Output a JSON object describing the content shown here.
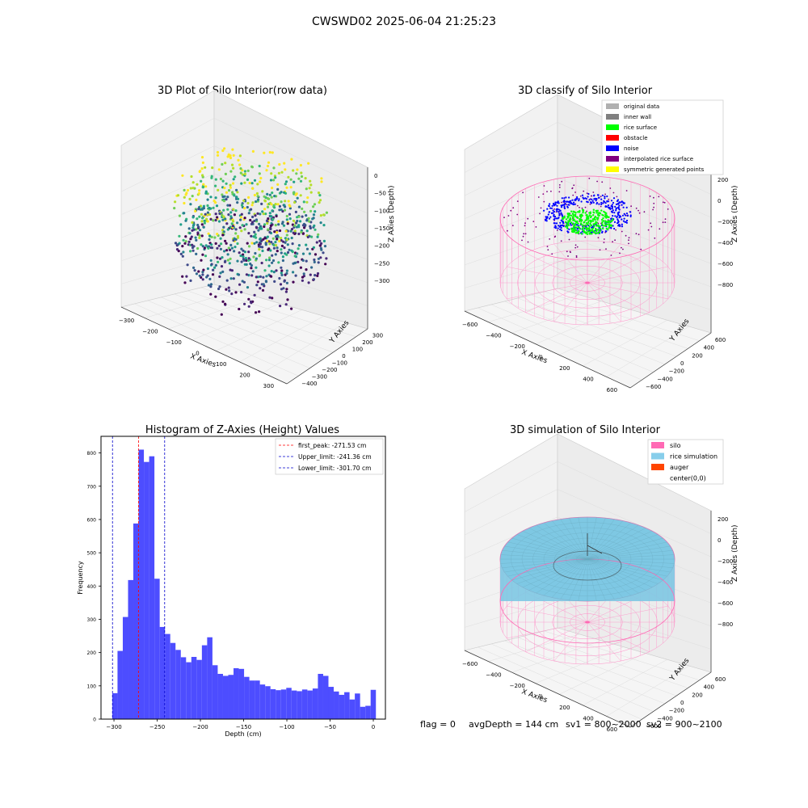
{
  "suptitle": "CWSWD02 2025-06-04 21:25:23",
  "status": {
    "flag": "flag = 0",
    "avg_depth": "avgDepth = 144 cm",
    "sv1": "sv1 = 800~2000",
    "sv2": "sv2 = 900~2100"
  },
  "chart_data": [
    {
      "type": "scatter",
      "title": "3D Plot of Silo Interior(row data)",
      "xlabel": "X Axies",
      "ylabel": "Y Axies",
      "zlabel": "Z Axies (Depth)",
      "xticks": [
        "−300",
        "−200",
        "−100",
        "0",
        "100",
        "200",
        "300"
      ],
      "yticks": [
        "300",
        "200",
        "100",
        "0",
        "−100",
        "−200",
        "−300",
        "−400"
      ],
      "zticks": [
        "0",
        "−50",
        "−100",
        "−150",
        "−200",
        "−250",
        "−300"
      ],
      "colormap": [
        "#fde725",
        "#b5de2b",
        "#6ece58",
        "#35b779",
        "#1f9e89",
        "#26828e",
        "#31688e",
        "#3e4989",
        "#482878",
        "#440154"
      ]
    },
    {
      "type": "scatter",
      "title": "3D classify of Silo Interior",
      "xlabel": "X Axies",
      "ylabel": "Y Axies",
      "zlabel": "Z Axies (Depth)",
      "xticks": [
        "−600",
        "−400",
        "−200",
        "0",
        "200",
        "400",
        "600"
      ],
      "yticks": [
        "600",
        "400",
        "200",
        "0",
        "−200",
        "−400",
        "−600"
      ],
      "zticks": [
        "200",
        "0",
        "−200",
        "−400",
        "−600",
        "−800"
      ],
      "legend": [
        {
          "label": "original data",
          "color": "#b0b0b0"
        },
        {
          "label": "inner wall",
          "color": "#808080"
        },
        {
          "label": "rice surface",
          "color": "#00ff00"
        },
        {
          "label": "obstacle",
          "color": "#ff0000"
        },
        {
          "label": "noise",
          "color": "#0000ff"
        },
        {
          "label": "interpolated rice surface",
          "color": "#800080"
        },
        {
          "label": "symmetric generated points",
          "color": "#ffff00"
        }
      ],
      "legend_position": "top-right"
    },
    {
      "type": "bar",
      "title": "Histogram of Z-Axies (Height) Values",
      "xlabel": "Depth (cm)",
      "ylabel": "Frequency",
      "xlim": [
        -315,
        14
      ],
      "ylim": [
        0,
        850
      ],
      "xticks": [
        -300,
        -250,
        -200,
        -150,
        -100,
        -50,
        0
      ],
      "xtick_labels": [
        "−300",
        "−250",
        "−200",
        "−150",
        "−100",
        "−50",
        "0"
      ],
      "yticks": [
        0,
        100,
        200,
        300,
        400,
        500,
        600,
        700,
        800
      ],
      "bin_start": -302.0,
      "bin_width": 6.1,
      "values": [
        78,
        205,
        307,
        418,
        588,
        810,
        773,
        790,
        422,
        277,
        256,
        229,
        208,
        186,
        171,
        187,
        178,
        222,
        246,
        162,
        136,
        130,
        133,
        153,
        151,
        127,
        116,
        116,
        104,
        99,
        90,
        87,
        89,
        94,
        86,
        84,
        89,
        86,
        92,
        136,
        130,
        97,
        83,
        73,
        81,
        59,
        77,
        37,
        40,
        88
      ],
      "bar_color": "#4d4dff",
      "vlines": [
        {
          "label": "first_peak: -271.53 cm",
          "x": -271.53,
          "color": "#ff0000"
        },
        {
          "label": "Upper_limit: -241.36 cm",
          "x": -241.36,
          "color": "#0000cc"
        },
        {
          "label": "Lower_limit: -301.70 cm",
          "x": -301.7,
          "color": "#0000cc"
        }
      ],
      "legend_position": "top-right"
    },
    {
      "type": "area",
      "title": "3D simulation of Silo Interior",
      "xlabel": "X Axies",
      "ylabel": "Y Axies",
      "zlabel": "Z Axies (Depth)",
      "xticks": [
        "−600",
        "−400",
        "−200",
        "0",
        "200",
        "400",
        "600"
      ],
      "yticks": [
        "600",
        "400",
        "200",
        "0",
        "−200",
        "−400",
        "−600"
      ],
      "zticks": [
        "200",
        "0",
        "−200",
        "−400",
        "−600",
        "−800"
      ],
      "legend": [
        {
          "label": "silo",
          "color": "#ff69b4"
        },
        {
          "label": "rice simulation",
          "color": "#87ceeb"
        },
        {
          "label": "auger",
          "color": "#ff4500"
        },
        {
          "label": "center(0,0)",
          "color": "#ffffff"
        }
      ],
      "legend_position": "top-right"
    }
  ]
}
